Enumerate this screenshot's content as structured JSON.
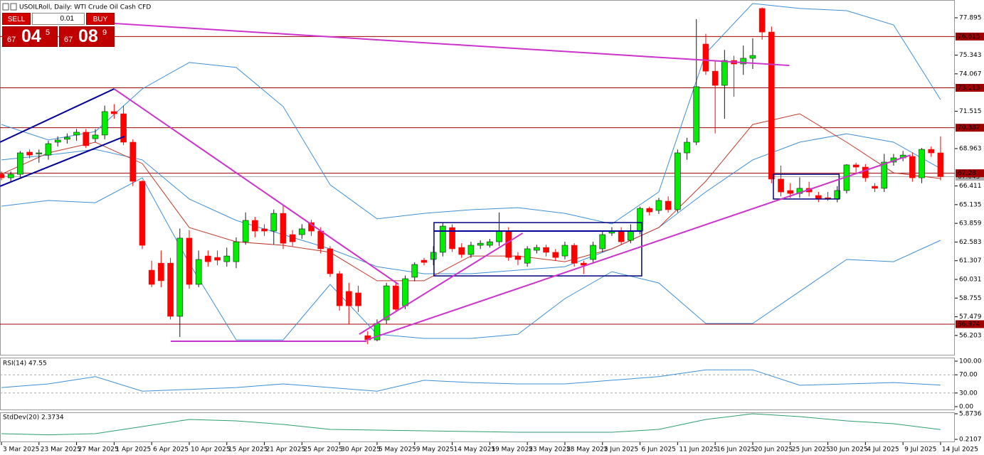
{
  "chart_data": [
    {
      "type": "candlestick",
      "title": "USOILRoll, Daily: WTI Crude Oil Cash CFD",
      "up_color": "#00ee00",
      "down_color": "#ff0000",
      "xlim": [
        -0.15,
        101.52
      ],
      "ylim": [
        54.837,
        79.109
      ],
      "yticks": [
        77.895,
        75.343,
        74.067,
        71.515,
        68.963,
        66.411,
        65.135,
        63.859,
        62.583,
        61.307,
        60.031,
        58.755,
        57.479,
        56.203
      ],
      "xticks": [
        {
          "value": 0,
          "label": "3 Mar 2025"
        },
        {
          "value": 4,
          "label": "23 Mar 2025"
        },
        {
          "value": 8,
          "label": "27 Mar 2025"
        },
        {
          "value": 12,
          "label": "1 Apr 2025"
        },
        {
          "value": 16,
          "label": "6 Apr 2025"
        },
        {
          "value": 20,
          "label": "10 Apr 2025"
        },
        {
          "value": 24,
          "label": "15 Apr 2025"
        },
        {
          "value": 28,
          "label": "21 Apr 2025"
        },
        {
          "value": 32,
          "label": "25 Apr 2025"
        },
        {
          "value": 36,
          "label": "30 Apr 2025"
        },
        {
          "value": 40,
          "label": "5 May 2025"
        },
        {
          "value": 44,
          "label": "9 May 2025"
        },
        {
          "value": 48,
          "label": "14 May 2025"
        },
        {
          "value": 52,
          "label": "19 May 2025"
        },
        {
          "value": 56,
          "label": "23 May 2025"
        },
        {
          "value": 60,
          "label": "28 May 2025"
        },
        {
          "value": 64,
          "label": "2 Jun 2025"
        },
        {
          "value": 68,
          "label": "6 Jun 2025"
        },
        {
          "value": 72,
          "label": "11 Jun 2025"
        },
        {
          "value": 76,
          "label": "16 Jun 2025"
        },
        {
          "value": 80,
          "label": "20 Jun 2025"
        },
        {
          "value": 84,
          "label": "25 Jun 2025"
        },
        {
          "value": 88,
          "label": "30 Jun 2025"
        },
        {
          "value": 92,
          "label": "4 Jul 2025"
        },
        {
          "value": 96,
          "label": "9 Jul 2025"
        },
        {
          "value": 100,
          "label": "14 Jul 2025"
        }
      ],
      "ohlc": [
        [
          67.21,
          67.4,
          66.8,
          66.97
        ],
        [
          66.97,
          67.4,
          66.7,
          67.21
        ],
        [
          67.21,
          68.8,
          67.0,
          68.67
        ],
        [
          68.72,
          68.9,
          68.3,
          68.52
        ],
        [
          68.6,
          68.9,
          68.0,
          68.67
        ],
        [
          68.52,
          69.5,
          68.2,
          69.3
        ],
        [
          69.4,
          69.8,
          69.1,
          69.55
        ],
        [
          69.6,
          70.0,
          69.3,
          69.74
        ],
        [
          69.89,
          70.3,
          69.5,
          70.08
        ],
        [
          70.08,
          70.3,
          69.0,
          69.16
        ],
        [
          69.64,
          70.3,
          69.4,
          69.89
        ],
        [
          69.89,
          71.9,
          69.6,
          71.49
        ],
        [
          71.49,
          72.0,
          71.0,
          71.34
        ],
        [
          71.34,
          71.9,
          69.2,
          69.4
        ],
        [
          69.4,
          69.6,
          66.4,
          66.73
        ],
        [
          66.73,
          66.8,
          62.1,
          62.36
        ],
        [
          60.66,
          61.3,
          59.5,
          59.69
        ],
        [
          61.14,
          62.0,
          59.5,
          59.94
        ],
        [
          61.14,
          61.5,
          57.3,
          57.51
        ],
        [
          57.51,
          63.5,
          56.1,
          62.85
        ],
        [
          62.85,
          63.4,
          59.4,
          59.69
        ],
        [
          59.69,
          62.0,
          59.5,
          61.39
        ],
        [
          61.63,
          62.0,
          60.9,
          61.24
        ],
        [
          61.53,
          62.0,
          61.0,
          61.34
        ],
        [
          61.24,
          62.2,
          60.9,
          61.63
        ],
        [
          61.24,
          62.9,
          60.8,
          62.6
        ],
        [
          62.6,
          64.6,
          62.4,
          64.06
        ],
        [
          64.06,
          64.3,
          62.9,
          63.33
        ],
        [
          63.48,
          63.8,
          63.0,
          63.33
        ],
        [
          63.33,
          64.8,
          62.4,
          64.54
        ],
        [
          64.54,
          65.1,
          62.1,
          62.5
        ],
        [
          63.09,
          63.4,
          62.3,
          62.6
        ],
        [
          63.09,
          63.8,
          62.8,
          63.48
        ],
        [
          63.91,
          64.1,
          63.0,
          63.33
        ],
        [
          63.33,
          63.6,
          61.8,
          62.12
        ],
        [
          62.12,
          62.3,
          60.2,
          60.42
        ],
        [
          60.42,
          60.6,
          57.9,
          58.23
        ],
        [
          59.21,
          59.8,
          57.0,
          58.23
        ],
        [
          59.11,
          59.6,
          57.8,
          58.23
        ],
        [
          56.19,
          56.5,
          55.6,
          55.9
        ],
        [
          55.9,
          57.3,
          55.8,
          57.02
        ],
        [
          57.26,
          59.8,
          57.0,
          59.59
        ],
        [
          59.59,
          59.8,
          57.8,
          57.99
        ],
        [
          58.23,
          60.3,
          58.0,
          60.08
        ],
        [
          60.18,
          61.2,
          59.9,
          61.05
        ],
        [
          61.34,
          61.5,
          61.0,
          61.19
        ],
        [
          61.39,
          62.3,
          61.0,
          61.88
        ],
        [
          61.88,
          63.9,
          61.6,
          63.67
        ],
        [
          63.57,
          63.8,
          61.9,
          62.12
        ],
        [
          62.21,
          62.5,
          61.5,
          61.73
        ],
        [
          61.73,
          62.6,
          61.5,
          62.36
        ],
        [
          62.36,
          62.7,
          62.1,
          62.5
        ],
        [
          62.36,
          62.8,
          62.2,
          62.6
        ],
        [
          62.6,
          64.6,
          62.3,
          63.33
        ],
        [
          63.33,
          63.6,
          61.3,
          61.53
        ],
        [
          61.63,
          61.9,
          61.0,
          61.39
        ],
        [
          61.14,
          62.3,
          60.9,
          62.12
        ],
        [
          62.02,
          62.4,
          61.8,
          62.21
        ],
        [
          62.21,
          62.4,
          61.6,
          61.88
        ],
        [
          61.88,
          62.1,
          61.3,
          61.53
        ],
        [
          61.63,
          62.6,
          61.4,
          62.36
        ],
        [
          62.36,
          62.5,
          60.9,
          61.14
        ],
        [
          61.14,
          61.3,
          60.4,
          61.0
        ],
        [
          61.39,
          62.6,
          61.2,
          62.36
        ],
        [
          62.12,
          63.3,
          61.9,
          63.09
        ],
        [
          63.19,
          63.6,
          63.0,
          63.33
        ],
        [
          63.33,
          63.6,
          62.4,
          62.6
        ],
        [
          62.7,
          63.8,
          62.5,
          63.33
        ],
        [
          63.33,
          65.0,
          63.1,
          64.88
        ],
        [
          64.88,
          65.0,
          64.4,
          64.64
        ],
        [
          64.74,
          65.6,
          64.5,
          65.42
        ],
        [
          65.37,
          65.7,
          64.6,
          64.79
        ],
        [
          64.79,
          68.9,
          64.6,
          68.67
        ],
        [
          68.67,
          69.7,
          68.2,
          69.4
        ],
        [
          69.4,
          77.8,
          69.2,
          73.19
        ],
        [
          76.1,
          76.8,
          74.0,
          74.25
        ],
        [
          74.25,
          75.0,
          70.0,
          73.28
        ],
        [
          73.28,
          75.7,
          71.0,
          74.98
        ],
        [
          74.98,
          75.3,
          72.5,
          74.74
        ],
        [
          74.74,
          76.0,
          74.0,
          75.13
        ],
        [
          75.13,
          76.5,
          74.4,
          75.32
        ],
        [
          78.53,
          78.6,
          76.4,
          76.92
        ],
        [
          76.92,
          77.3,
          66.6,
          66.88
        ],
        [
          66.88,
          67.8,
          65.7,
          66.0
        ],
        [
          66.1,
          66.6,
          65.6,
          65.9
        ],
        [
          65.9,
          67.0,
          65.6,
          66.25
        ],
        [
          66.25,
          66.7,
          65.7,
          66.0
        ],
        [
          65.76,
          66.0,
          65.3,
          65.52
        ],
        [
          65.61,
          66.0,
          65.4,
          65.52
        ],
        [
          65.52,
          66.4,
          65.3,
          66.1
        ],
        [
          66.1,
          67.9,
          65.9,
          67.85
        ],
        [
          67.85,
          68.0,
          67.3,
          67.7
        ],
        [
          67.7,
          67.9,
          66.7,
          66.97
        ],
        [
          66.39,
          66.6,
          66.0,
          66.25
        ],
        [
          66.25,
          68.6,
          66.0,
          68.04
        ],
        [
          68.04,
          68.6,
          67.8,
          68.33
        ],
        [
          68.33,
          68.8,
          68.1,
          68.52
        ],
        [
          68.43,
          68.7,
          66.7,
          66.97
        ],
        [
          66.97,
          69.0,
          66.6,
          68.91
        ],
        [
          68.91,
          69.1,
          68.4,
          68.67
        ],
        [
          68.67,
          69.8,
          66.8,
          67.05
        ]
      ],
      "overlays": [
        {
          "color": "#3d8fd6",
          "x": [
            0,
            5,
            10,
            15,
            20,
            25,
            30,
            35,
            40,
            45,
            50,
            55,
            60,
            65,
            70,
            75,
            80,
            85,
            90,
            95,
            100
          ],
          "values": [
            70.61,
            69.55,
            70.13,
            73.04,
            74.84,
            74.5,
            71.83,
            66.49,
            64.16,
            64.54,
            64.79,
            64.93,
            64.54,
            63.82,
            66.0,
            75.47,
            78.87,
            78.53,
            78.38,
            77.41,
            72.31
          ]
        },
        {
          "color": "#3d8fd6",
          "x": [
            0,
            5,
            10,
            15,
            20,
            25,
            30,
            35,
            40,
            45,
            50,
            55,
            60,
            65,
            70,
            75,
            80,
            85,
            90,
            95,
            100
          ],
          "values": [
            68.19,
            68.52,
            68.91,
            68.19,
            65.52,
            64.06,
            63.09,
            62.12,
            60.9,
            60.42,
            60.42,
            60.66,
            60.9,
            62.12,
            63.57,
            66.0,
            68.19,
            69.4,
            69.98,
            69.4,
            67.6
          ]
        },
        {
          "color": "#3d8fd6",
          "x": [
            0,
            5,
            10,
            15,
            20,
            25,
            30,
            35,
            40,
            45,
            50,
            55,
            60,
            65,
            70,
            75,
            80,
            85,
            90,
            95,
            100
          ],
          "values": [
            65.03,
            65.42,
            65.27,
            66.97,
            61.14,
            55.9,
            55.9,
            59.69,
            56.29,
            56.0,
            56.0,
            56.29,
            58.72,
            60.56,
            59.79,
            57.02,
            57.02,
            59.21,
            61.39,
            61.24,
            62.7
          ]
        },
        {
          "color": "#c0392b",
          "x": [
            0,
            5,
            10,
            15,
            20,
            25,
            30,
            35,
            40,
            45,
            50,
            55,
            60,
            65,
            70,
            75,
            80,
            85,
            90,
            95,
            100
          ],
          "values": [
            67.21,
            68.67,
            69.4,
            67.94,
            63.57,
            62.6,
            62.36,
            61.88,
            59.94,
            59.94,
            61.63,
            61.63,
            61.24,
            62.12,
            63.57,
            66.73,
            70.61,
            71.34,
            69.4,
            67.31,
            66.92
          ]
        }
      ],
      "lines": [
        {
          "color": "#cc33cc",
          "x": [
            12,
            83.9
          ],
          "y": [
            77.51,
            74.64
          ]
        },
        {
          "color": "#cc33cc",
          "x": [
            12,
            42.3
          ],
          "y": [
            73.04,
            59.69
          ]
        },
        {
          "color": "#cc33cc",
          "x": [
            18.03,
            38.9
          ],
          "y": [
            55.81,
            55.81
          ]
        },
        {
          "color": "#cc33cc",
          "x": [
            38.1,
            55.5
          ],
          "y": [
            56.29,
            63.19
          ]
        },
        {
          "color": "#cc33cc",
          "x": [
            38.9,
            96.8
          ],
          "y": [
            55.9,
            68.52
          ]
        },
        {
          "color": "#000099",
          "x": [
            -0.15,
            12
          ],
          "y": [
            69.4,
            73.04
          ]
        },
        {
          "color": "#000099",
          "x": [
            -0.15,
            13.1
          ],
          "y": [
            66.39,
            69.79
          ]
        },
        {
          "color": "#000099",
          "x": [
            46.06,
            68.18
          ],
          "y": [
            63.33,
            63.33
          ]
        }
      ],
      "boxes": [
        {
          "color": "#000080",
          "x": [
            46.06,
            68.18
          ],
          "y": [
            60.27,
            63.91
          ]
        },
        {
          "color": "#000080",
          "x": [
            82.2,
            89.2
          ],
          "y": [
            65.52,
            67.21
          ]
        }
      ],
      "levels": [
        {
          "value": 76.615,
          "color": "#a00000"
        },
        {
          "value": 73.113,
          "color": "#a00000"
        },
        {
          "value": 70.387,
          "color": "#a00000"
        },
        {
          "value": 67.28,
          "color": "#a00000"
        },
        {
          "value": 56.974,
          "color": "#a00000"
        }
      ],
      "bid": 67.045,
      "bid_color": "#b0b0b0"
    },
    {
      "type": "line",
      "title": "RSI(14) 47.55",
      "color": "#3d8fd6",
      "xlim": [
        -0.15,
        101.52
      ],
      "ylim": [
        -7.8,
        107.8
      ],
      "yticks": [
        {
          "value": 100,
          "label": "100.00"
        },
        {
          "value": 70,
          "label": "70.00"
        },
        {
          "value": 30,
          "label": "30.00"
        },
        {
          "value": 0,
          "label": "0.00"
        }
      ],
      "dashed_levels": [
        70,
        30
      ],
      "x": [
        0,
        5,
        10,
        15,
        20,
        25,
        30,
        35,
        40,
        45,
        50,
        55,
        60,
        65,
        70,
        75,
        80,
        85,
        90,
        95,
        100
      ],
      "values": [
        42,
        50,
        66,
        34,
        38,
        42,
        50,
        42,
        34,
        58,
        53,
        50,
        50,
        58,
        66,
        81,
        81,
        47,
        50,
        53,
        47.55
      ]
    },
    {
      "type": "line",
      "title": "StdDev(20) 2.3734",
      "color": "#2e9e6e",
      "xlim": [
        -0.15,
        101.52
      ],
      "ylim": [
        -0.418,
        6.188
      ],
      "yticks": [
        5.8736,
        0.2107
      ],
      "x": [
        0,
        5,
        10,
        15,
        20,
        25,
        30,
        35,
        40,
        45,
        50,
        55,
        60,
        65,
        70,
        75,
        80,
        85,
        90,
        95,
        100
      ],
      "values": [
        1.47,
        1.21,
        1.47,
        3.04,
        4.61,
        4.3,
        3.51,
        2.41,
        2.25,
        2.1,
        1.94,
        1.78,
        1.78,
        1.78,
        2.41,
        4.61,
        5.87,
        5.24,
        4.3,
        3.67,
        2.3734
      ]
    }
  ],
  "trade_panel": {
    "sell": "SELL",
    "buy": "BUY",
    "lot": "0.01",
    "sell_price": [
      "67",
      "04",
      "5"
    ],
    "buy_price": [
      "67",
      "08",
      "9"
    ]
  }
}
